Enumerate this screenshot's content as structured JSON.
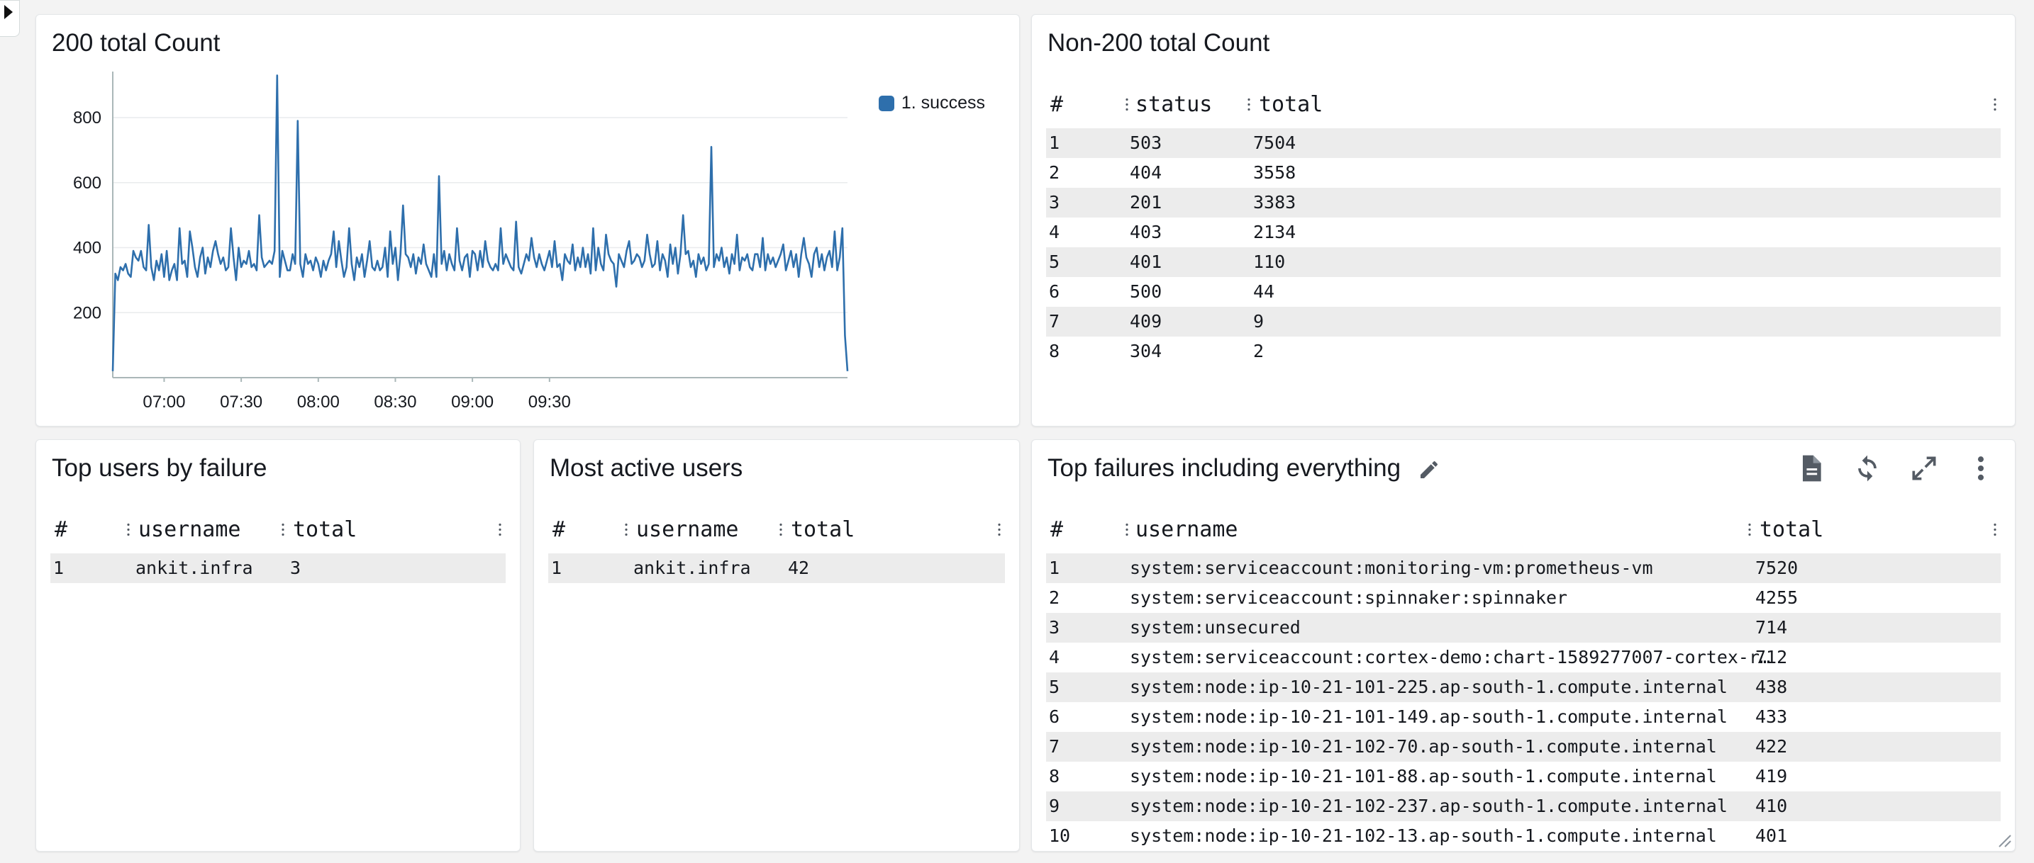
{
  "widgets": {
    "count200": {
      "title": "200 total Count",
      "legend": "1. success"
    },
    "non200": {
      "title": "Non-200 total Count",
      "columns": [
        "#",
        "status",
        "total"
      ],
      "rows": [
        [
          "1",
          "503",
          "7504"
        ],
        [
          "2",
          "404",
          "3558"
        ],
        [
          "3",
          "201",
          "3383"
        ],
        [
          "4",
          "403",
          "2134"
        ],
        [
          "5",
          "401",
          "110"
        ],
        [
          "6",
          "500",
          "44"
        ],
        [
          "7",
          "409",
          "9"
        ],
        [
          "8",
          "304",
          "2"
        ]
      ]
    },
    "topUsersFailure": {
      "title": "Top users by failure",
      "columns": [
        "#",
        "username",
        "total"
      ],
      "rows": [
        [
          "1",
          "ankit.infra",
          "3"
        ]
      ]
    },
    "mostActive": {
      "title": "Most active users",
      "columns": [
        "#",
        "username",
        "total"
      ],
      "rows": [
        [
          "1",
          "ankit.infra",
          "42"
        ]
      ]
    },
    "topFailuresAll": {
      "title": "Top failures including everything",
      "columns": [
        "#",
        "username",
        "total"
      ],
      "rows": [
        [
          "1",
          "system:serviceaccount:monitoring-vm:prometheus-vm",
          "7520"
        ],
        [
          "2",
          "system:serviceaccount:spinnaker:spinnaker",
          "4255"
        ],
        [
          "3",
          "system:unsecured",
          "714"
        ],
        [
          "4",
          "system:serviceaccount:cortex-demo:chart-1589277007-cortex-r…",
          "712"
        ],
        [
          "5",
          "system:node:ip-10-21-101-225.ap-south-1.compute.internal",
          "438"
        ],
        [
          "6",
          "system:node:ip-10-21-101-149.ap-south-1.compute.internal",
          "433"
        ],
        [
          "7",
          "system:node:ip-10-21-102-70.ap-south-1.compute.internal",
          "422"
        ],
        [
          "8",
          "system:node:ip-10-21-101-88.ap-south-1.compute.internal",
          "419"
        ],
        [
          "9",
          "system:node:ip-10-21-102-237.ap-south-1.compute.internal",
          "410"
        ],
        [
          "10",
          "system:node:ip-10-21-102-13.ap-south-1.compute.internal",
          "401"
        ]
      ]
    }
  },
  "chart_data": {
    "type": "line",
    "title": "200 total Count",
    "xlabel": "",
    "ylabel": "",
    "series": [
      {
        "name": "1. success",
        "color": "#2e6fac",
        "x_start_minutes": 400,
        "x_step_minutes": 1,
        "values": [
          20,
          320,
          300,
          340,
          330,
          350,
          320,
          310,
          390,
          370,
          360,
          390,
          340,
          330,
          470,
          340,
          300,
          360,
          330,
          380,
          310,
          390,
          300,
          330,
          350,
          300,
          460,
          350,
          360,
          310,
          450,
          400,
          340,
          310,
          370,
          400,
          320,
          370,
          340,
          390,
          420,
          380,
          350,
          370,
          330,
          340,
          460,
          370,
          300,
          400,
          340,
          360,
          350,
          390,
          340,
          350,
          330,
          500,
          370,
          340,
          350,
          360,
          350,
          390,
          930,
          310,
          390,
          360,
          330,
          330,
          380,
          350,
          790,
          350,
          310,
          380,
          350,
          360,
          330,
          370,
          350,
          310,
          360,
          330,
          360,
          380,
          450,
          340,
          420,
          360,
          310,
          340,
          460,
          350,
          300,
          370,
          340,
          380,
          310,
          360,
          420,
          340,
          330,
          360,
          330,
          340,
          400,
          310,
          450,
          350,
          400,
          300,
          380,
          530,
          380,
          370,
          340,
          380,
          320,
          370,
          350,
          410,
          350,
          330,
          310,
          380,
          310,
          620,
          350,
          390,
          330,
          380,
          350,
          330,
          460,
          360,
          330,
          370,
          380,
          310,
          390,
          380,
          330,
          390,
          340,
          420,
          360,
          340,
          330,
          350,
          330,
          460,
          350,
          380,
          360,
          340,
          330,
          480,
          340,
          320,
          350,
          380,
          360,
          430,
          370,
          340,
          380,
          350,
          330,
          360,
          390,
          340,
          420,
          340,
          350,
          300,
          380,
          360,
          350,
          410,
          330,
          370,
          340,
          400,
          340,
          380,
          320,
          460,
          330,
          400,
          350,
          330,
          440,
          380,
          360,
          350,
          280,
          380,
          360,
          340,
          390,
          420,
          350,
          360,
          380,
          370,
          340,
          360,
          440,
          380,
          340,
          350,
          420,
          330,
          380,
          360,
          310,
          410,
          350,
          400,
          320,
          380,
          500,
          380,
          390,
          340,
          360,
          310,
          380,
          350,
          370,
          330,
          350,
          710,
          340,
          380,
          360,
          400,
          340,
          370,
          320,
          380,
          350,
          440,
          330,
          370,
          360,
          380,
          340,
          330,
          380,
          380,
          340,
          430,
          330,
          380,
          350,
          370,
          340,
          360,
          380,
          410,
          330,
          360,
          390,
          340,
          380,
          310,
          380,
          430,
          370,
          350,
          310,
          380,
          400,
          340,
          380,
          330,
          370,
          390,
          340,
          450,
          330,
          370,
          460,
          130,
          20
        ]
      }
    ],
    "x_ticks": [
      "07:00",
      "07:30",
      "08:00",
      "08:30",
      "09:00",
      "09:30"
    ],
    "y_ticks": [
      200,
      400,
      600,
      800
    ],
    "ylim": [
      0,
      920
    ],
    "grid": "horizontal",
    "legend": "top-right"
  }
}
